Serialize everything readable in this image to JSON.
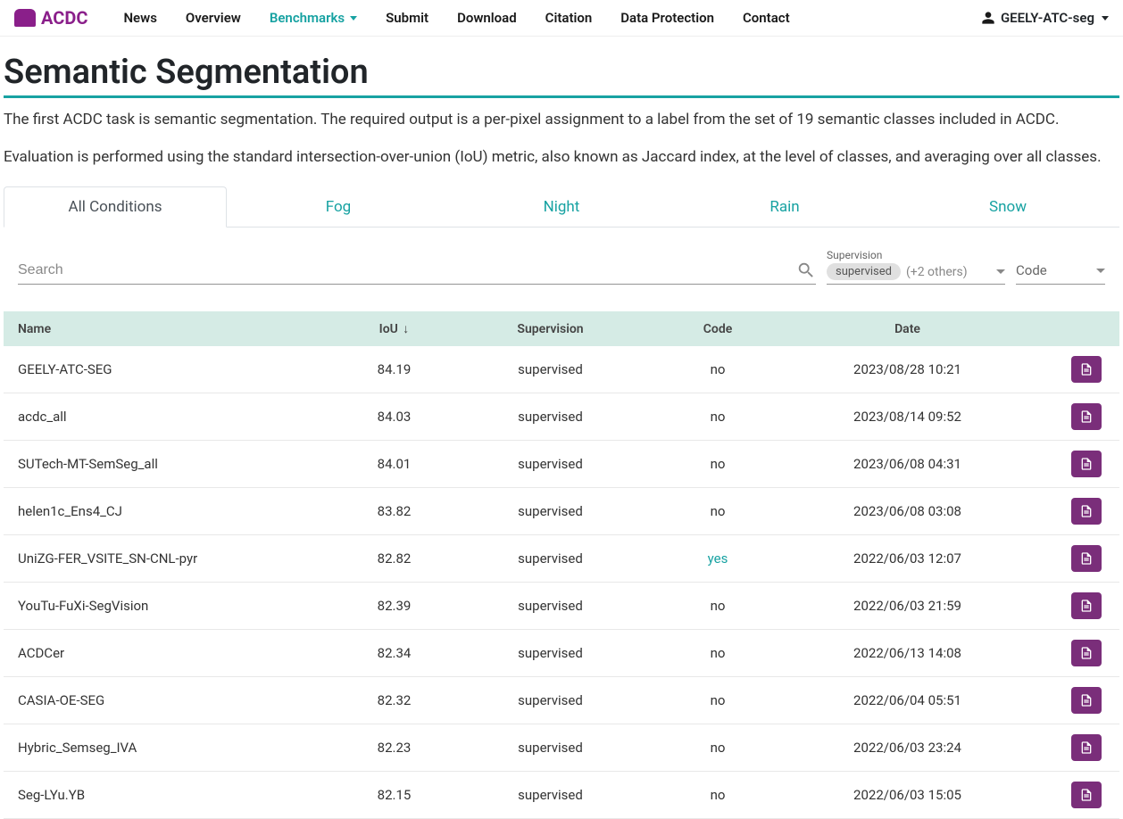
{
  "brand": "ACDC",
  "nav": {
    "items": [
      {
        "label": "News",
        "active": false
      },
      {
        "label": "Overview",
        "active": false
      },
      {
        "label": "Benchmarks",
        "active": true,
        "dropdown": true
      },
      {
        "label": "Submit",
        "active": false
      },
      {
        "label": "Download",
        "active": false
      },
      {
        "label": "Citation",
        "active": false
      },
      {
        "label": "Data Protection",
        "active": false
      },
      {
        "label": "Contact",
        "active": false
      }
    ],
    "user": "GEELY-ATC-seg"
  },
  "page": {
    "title": "Semantic Segmentation",
    "desc1": "The first ACDC task is semantic segmentation. The required output is a per-pixel assignment to a label from the set of 19 semantic classes included in ACDC.",
    "desc2": "Evaluation is performed using the standard intersection-over-union (IoU) metric, also known as Jaccard index, at the level of classes, and averaging over all classes."
  },
  "tabs": [
    {
      "label": "All Conditions",
      "active": true
    },
    {
      "label": "Fog",
      "active": false
    },
    {
      "label": "Night",
      "active": false
    },
    {
      "label": "Rain",
      "active": false
    },
    {
      "label": "Snow",
      "active": false
    }
  ],
  "filters": {
    "search_placeholder": "Search",
    "supervision_label": "Supervision",
    "supervision_chip": "supervised",
    "supervision_others": "(+2 others)",
    "code_label": "Code"
  },
  "columns": {
    "name": "Name",
    "iou": "IoU",
    "supervision": "Supervision",
    "code": "Code",
    "date": "Date"
  },
  "rows": [
    {
      "name": "GEELY-ATC-SEG",
      "iou": "84.19",
      "supervision": "supervised",
      "code": "no",
      "date": "2023/08/28 10:21"
    },
    {
      "name": "acdc_all",
      "iou": "84.03",
      "supervision": "supervised",
      "code": "no",
      "date": "2023/08/14 09:52"
    },
    {
      "name": "SUTech-MT-SemSeg_all",
      "iou": "84.01",
      "supervision": "supervised",
      "code": "no",
      "date": "2023/06/08 04:31"
    },
    {
      "name": "helen1c_Ens4_CJ",
      "iou": "83.82",
      "supervision": "supervised",
      "code": "no",
      "date": "2023/06/08 03:08"
    },
    {
      "name": "UniZG-FER_VSITE_SN-CNL-pyr",
      "iou": "82.82",
      "supervision": "supervised",
      "code": "yes",
      "date": "2022/06/03 12:07"
    },
    {
      "name": "YouTu-FuXi-SegVision",
      "iou": "82.39",
      "supervision": "supervised",
      "code": "no",
      "date": "2022/06/03 21:59"
    },
    {
      "name": "ACDCer",
      "iou": "82.34",
      "supervision": "supervised",
      "code": "no",
      "date": "2022/06/13 14:08"
    },
    {
      "name": "CASIA-OE-SEG",
      "iou": "82.32",
      "supervision": "supervised",
      "code": "no",
      "date": "2022/06/04 05:51"
    },
    {
      "name": "Hybric_Semseg_IVA",
      "iou": "82.23",
      "supervision": "supervised",
      "code": "no",
      "date": "2022/06/03 23:24"
    },
    {
      "name": "Seg-LYu.YB",
      "iou": "82.15",
      "supervision": "supervised",
      "code": "no",
      "date": "2022/06/03 15:05"
    }
  ],
  "colors": {
    "accent_teal": "#17a2a2",
    "accent_purple": "#7a2e7a",
    "brand_magenta": "#8a1f8a",
    "header_bg": "#d5ebe5"
  }
}
